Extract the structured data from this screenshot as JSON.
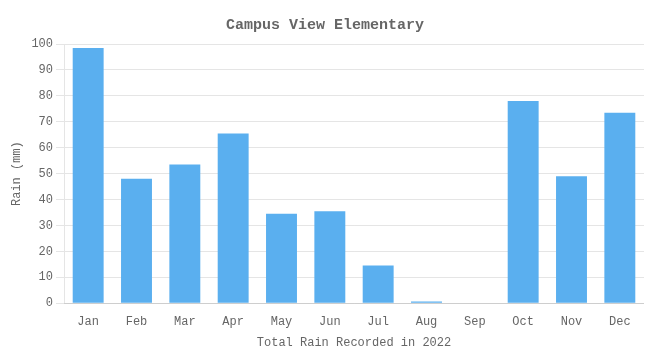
{
  "chart_data": {
    "type": "bar",
    "title": "Campus View Elementary",
    "xlabel": "Total Rain Recorded in 2022",
    "ylabel": "Rain (mm)",
    "categories": [
      "Jan",
      "Feb",
      "Mar",
      "Apr",
      "May",
      "Jun",
      "Jul",
      "Aug",
      "Sep",
      "Oct",
      "Nov",
      "Dec"
    ],
    "values": [
      98.5,
      48,
      53.5,
      65.5,
      34.5,
      35.5,
      14.5,
      0.7,
      0,
      78,
      49,
      73.5
    ],
    "color": "#5aafef",
    "ylim": [
      0,
      100
    ],
    "yticks": [
      0,
      10,
      20,
      30,
      40,
      50,
      60,
      70,
      80,
      90,
      100
    ],
    "grid": true
  }
}
